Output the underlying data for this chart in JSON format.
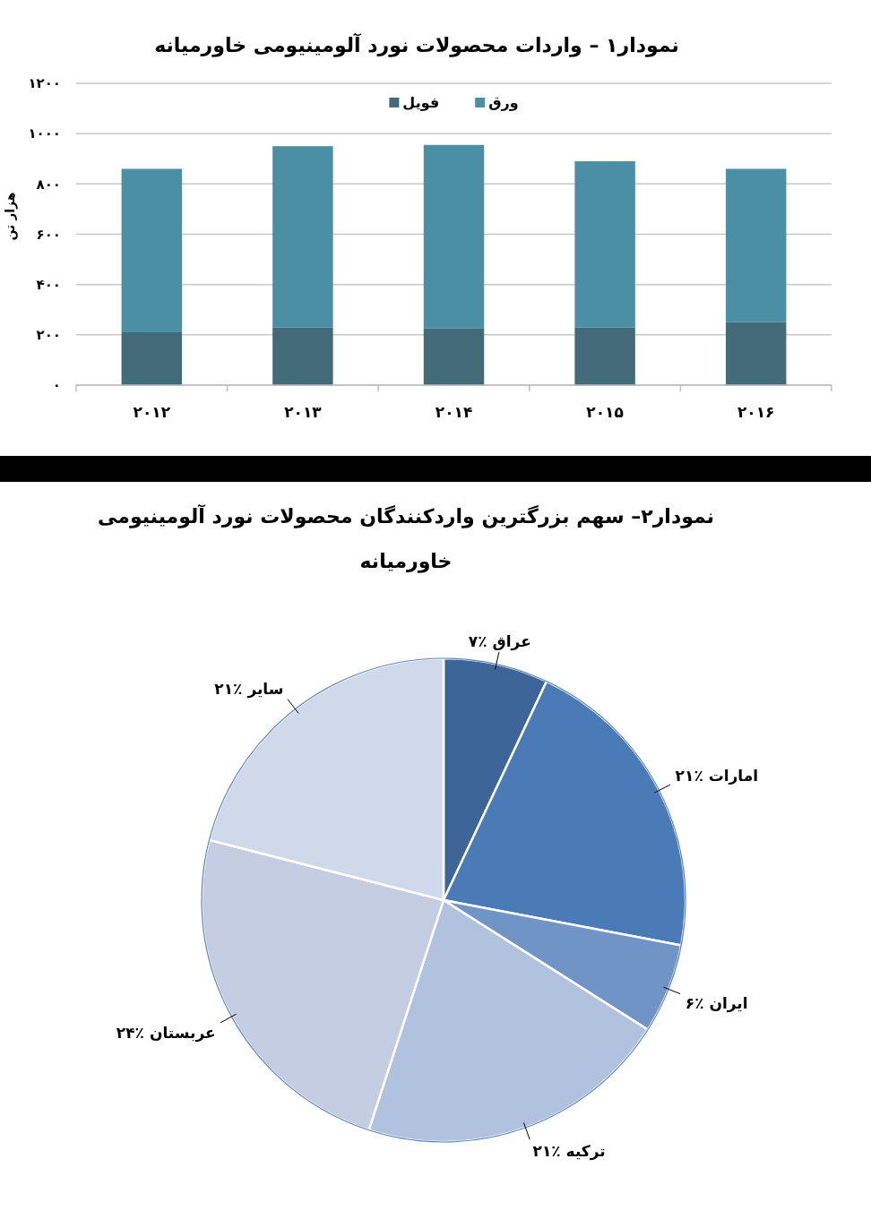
{
  "chart_data": [
    {
      "type": "bar",
      "title": "نمودار۱ – واردات محصولات نورد آلومینیومی خاورمیانه",
      "ylabel": "هزار تن",
      "categories": [
        "۲۰۱۲",
        "۲۰۱۳",
        "۲۰۱۴",
        "۲۰۱۵",
        "۲۰۱۶"
      ],
      "stacked": true,
      "series": [
        {
          "name": "فویل",
          "color": "#426a78",
          "values": [
            210,
            230,
            225,
            230,
            250
          ]
        },
        {
          "name": "ورق",
          "color": "#4b8fa4",
          "values": [
            650,
            720,
            730,
            660,
            610
          ]
        }
      ],
      "ylim": [
        0,
        1200
      ],
      "yticks": [
        {
          "value": 0,
          "label": "۰"
        },
        {
          "value": 200,
          "label": "۲۰۰"
        },
        {
          "value": 400,
          "label": "۴۰۰"
        },
        {
          "value": 600,
          "label": "۶۰۰"
        },
        {
          "value": 800,
          "label": "۸۰۰"
        },
        {
          "value": 1000,
          "label": "۱۰۰۰"
        },
        {
          "value": 1200,
          "label": "۱۲۰۰"
        }
      ],
      "grid": "y",
      "legend": "top"
    },
    {
      "type": "pie",
      "title": "نمودار۲– سهم بزرگترین واردکنندگان محصولات نورد آلومینیومی خاورمیانه",
      "categories": [
        "عراق",
        "امارات",
        "ایران",
        "ترکیه",
        "عربستان",
        "سایر"
      ],
      "values": [
        7,
        21,
        6,
        21,
        24,
        21
      ],
      "colors": [
        "#3e6597",
        "#4a7bb6",
        "#7194c7",
        "#b0c2de",
        "#c4cde2",
        "#d0d9ea"
      ],
      "value_labels": [
        "٪۷",
        "٪۲۱",
        "٪۶",
        "٪۲۱",
        "٪۲۴",
        "٪۲۱"
      ]
    }
  ]
}
